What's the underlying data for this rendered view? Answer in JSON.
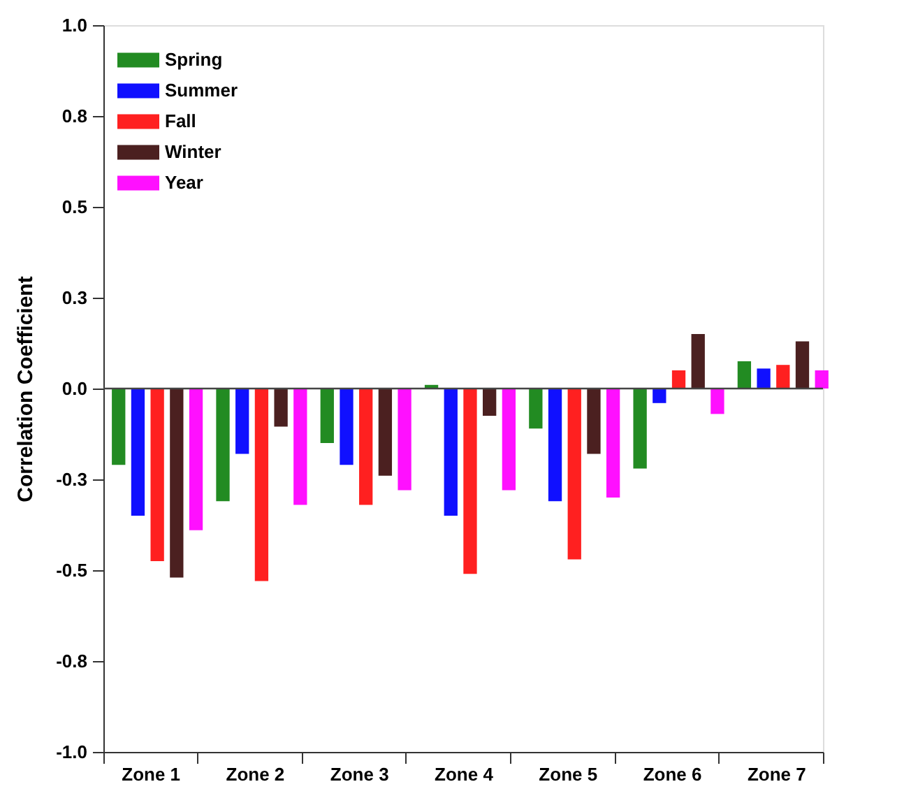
{
  "chart_data": {
    "type": "bar",
    "ylabel": "Correlation Coefficient",
    "categories": [
      "Zone 1",
      "Zone 2",
      "Zone 3",
      "Zone 4",
      "Zone 5",
      "Zone 6",
      "Zone 7"
    ],
    "series": [
      {
        "name": "Spring",
        "color": "#228b22",
        "values": [
          -0.21,
          -0.31,
          -0.15,
          0.01,
          -0.11,
          -0.22,
          0.075
        ]
      },
      {
        "name": "Summer",
        "color": "#1010ff",
        "values": [
          -0.35,
          -0.18,
          -0.21,
          -0.35,
          -0.31,
          -0.04,
          0.055
        ]
      },
      {
        "name": "Fall",
        "color": "#ff2020",
        "values": [
          -0.475,
          -0.53,
          -0.32,
          -0.51,
          -0.47,
          0.05,
          0.065
        ]
      },
      {
        "name": "Winter",
        "color": "#4b2020",
        "values": [
          -0.52,
          -0.105,
          -0.24,
          -0.075,
          -0.18,
          0.15,
          0.13
        ]
      },
      {
        "name": "Year",
        "color": "#ff10ff",
        "values": [
          -0.39,
          -0.32,
          -0.28,
          -0.28,
          -0.3,
          -0.07,
          0.05
        ]
      }
    ],
    "ylim": [
      -1.0,
      1.0
    ],
    "yticks": [
      {
        "value": -1.0,
        "label": "-1.0"
      },
      {
        "value": -0.75,
        "label": "-0.8"
      },
      {
        "value": -0.5,
        "label": "-0.5"
      },
      {
        "value": -0.25,
        "label": "-0.3"
      },
      {
        "value": 0,
        "label": "0.0"
      },
      {
        "value": 0.25,
        "label": "0.3"
      },
      {
        "value": 0.5,
        "label": "0.5"
      },
      {
        "value": 0.75,
        "label": "0.8"
      },
      {
        "value": 1.0,
        "label": "1.0"
      }
    ],
    "ref_lines": [
      {
        "axis": "y",
        "value": 0
      }
    ],
    "grid": false,
    "legend": "top left"
  }
}
